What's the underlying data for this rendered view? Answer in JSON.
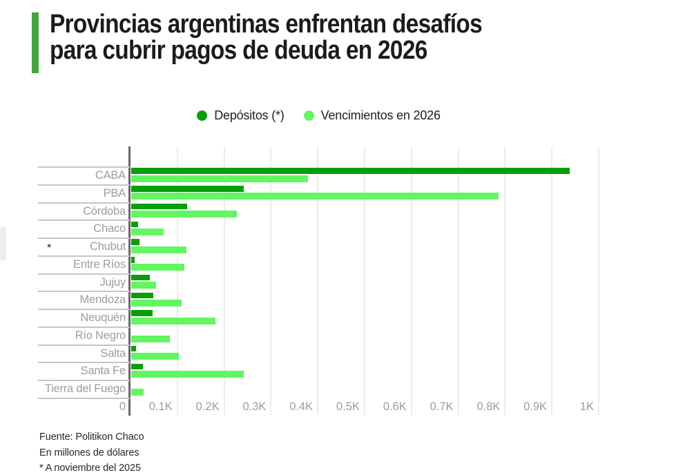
{
  "header": {
    "line1": "Provincias argentinas enfrentan desafíos",
    "line2": "para cubrir pagos de deuda en 2026"
  },
  "legend": [
    {
      "label": "Depósitos (*)",
      "color": "#069f06"
    },
    {
      "label": "Vencimientos en 2026",
      "color": "#62f661"
    }
  ],
  "colors": {
    "accent_bar": "#42a53c",
    "dark_green": "#069f06",
    "light_green": "#62f661",
    "axis": "#686868",
    "gridline": "#ececec",
    "muted_text": "#9c9c9c"
  },
  "chart_data": {
    "type": "bar",
    "orientation": "horizontal",
    "title": "Provincias argentinas enfrentan desafíos para cubrir pagos de deuda en 2026",
    "xlabel": "",
    "ylabel": "",
    "xlim": [
      0,
      1000
    ],
    "grid": "vertical",
    "legend_position": "top",
    "unit": "millones de dólares",
    "categories": [
      "CABA",
      "PBA",
      "Córdoba",
      "Chaco",
      "Chubut",
      "Entre Ríos",
      "Jujuy",
      "Mendoza",
      "Neuquén",
      "Río Negro",
      "Salta",
      "Santa Fe",
      "Tierra del Fuego"
    ],
    "series": [
      {
        "name": "Depósitos (*)",
        "color": "#069f06",
        "values": [
          937,
          240,
          120,
          15,
          18,
          7,
          40,
          47,
          45,
          0,
          10,
          25,
          0
        ]
      },
      {
        "name": "Vencimientos en 2026",
        "color": "#62f661",
        "values": [
          378,
          785,
          225,
          70,
          118,
          114,
          53,
          107,
          180,
          82,
          102,
          240,
          27
        ]
      }
    ],
    "x_ticks": [
      "0",
      "0.1K",
      "0.2K",
      "0.3K",
      "0.4K",
      "0.5K",
      "0.6K",
      "0.7K",
      "0.8K",
      "0.9K",
      "1K"
    ]
  },
  "annotations": {
    "row_marker": "*"
  },
  "footer": {
    "source": "Fuente: Politikon Chaco",
    "unit": "En millones de dólares",
    "note": "* A noviembre del 2025"
  }
}
